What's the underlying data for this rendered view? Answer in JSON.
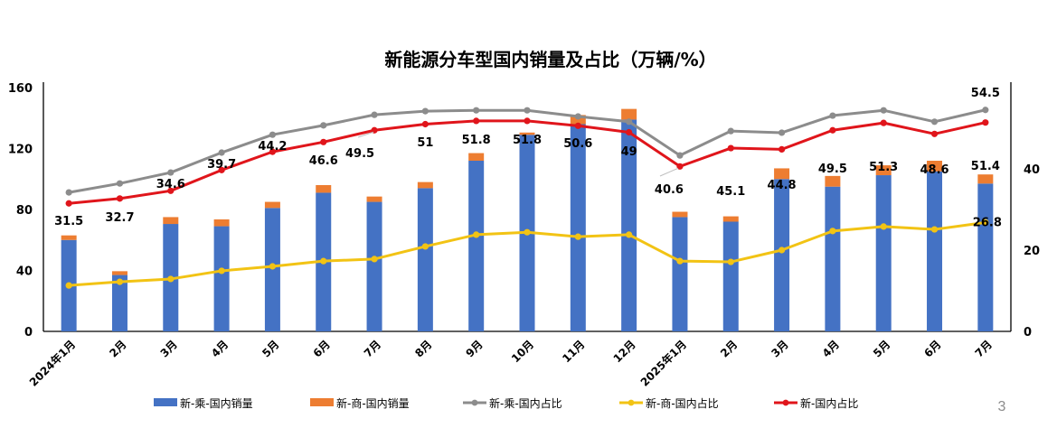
{
  "page_number": "3",
  "chart_data": {
    "type": "bar",
    "title": "新能源分车型国内销量及占比（万辆/%）",
    "xlabel": "",
    "ylabel": "",
    "ylabel_right": "",
    "ylim": [
      0,
      160
    ],
    "ylim_right": [
      0,
      60
    ],
    "yticks": [
      "0",
      "40",
      "80",
      "120",
      "160"
    ],
    "yticks_values": [
      0,
      40,
      80,
      120,
      160
    ],
    "yticks_right": [
      "0",
      "20",
      "40"
    ],
    "yticks_right_values": [
      0,
      20,
      40
    ],
    "grid": false,
    "legend_position": "bottom",
    "categories": [
      "2024年1月",
      "2月",
      "3月",
      "4月",
      "5月",
      "6月",
      "7月",
      "8月",
      "9月",
      "10月",
      "11月",
      "12月",
      "2025年1月",
      "2月",
      "3月",
      "4月",
      "5月",
      "6月",
      "7月"
    ],
    "series": [
      {
        "name": "新-乘-国内销量",
        "kind": "bar",
        "stack": "sales",
        "axis": "left",
        "color": "#4472C4",
        "values": [
          60,
          37,
          70.5,
          69,
          81,
          91,
          85,
          94,
          112,
          129,
          136,
          139,
          75,
          72,
          100,
          95,
          102.5,
          105,
          97
        ]
      },
      {
        "name": "新-商-国内销量",
        "kind": "bar",
        "stack": "sales",
        "axis": "left",
        "color": "#ED7D31",
        "values": [
          3,
          2.5,
          4.5,
          4.5,
          4,
          5,
          3.5,
          4,
          5,
          1.5,
          6,
          7,
          3.5,
          3.5,
          7,
          7,
          6.5,
          7,
          6
        ]
      },
      {
        "name": "新-乘-国内占比",
        "kind": "line",
        "axis": "right",
        "color": "#8C8C8C",
        "values": [
          34.2,
          36.4,
          39.1,
          44,
          48.4,
          50.7,
          53.3,
          54.2,
          54.4,
          54.4,
          52.9,
          51.6,
          43.3,
          49.3,
          48.9,
          53.1,
          54.4,
          51.6,
          54.5
        ],
        "labels": {
          "18": "54.5"
        }
      },
      {
        "name": "新-商-国内占比",
        "kind": "line",
        "axis": "right",
        "color": "#F2C314",
        "values": [
          11.3,
          12.2,
          12.9,
          14.9,
          16,
          17.3,
          17.8,
          20.9,
          23.8,
          24.4,
          23.3,
          23.8,
          17.3,
          17.1,
          20,
          24.7,
          25.8,
          25.1,
          26.8
        ],
        "labels": {
          "18": "26.8"
        }
      },
      {
        "name": "新-国内占比",
        "kind": "line",
        "axis": "right",
        "color": "#E0151B",
        "values": [
          31.5,
          32.7,
          34.6,
          39.7,
          44.2,
          46.6,
          49.5,
          51,
          51.8,
          51.8,
          50.6,
          49,
          40.6,
          45.1,
          44.8,
          49.5,
          51.3,
          48.6,
          51.4
        ],
        "labels": {
          "0": "31.5",
          "1": "32.7",
          "2": "34.6",
          "3": "39.7",
          "4": "44.2",
          "5": "46.6",
          "6": "49.5",
          "7": "51",
          "8": "51.8",
          "9": "51.8",
          "10": "50.6",
          "11": "49",
          "12": "40.6",
          "13": "45.1",
          "14": "44.8",
          "15": "49.5",
          "16": "51.3",
          "17": "48.6",
          "18": "51.4"
        }
      }
    ]
  }
}
